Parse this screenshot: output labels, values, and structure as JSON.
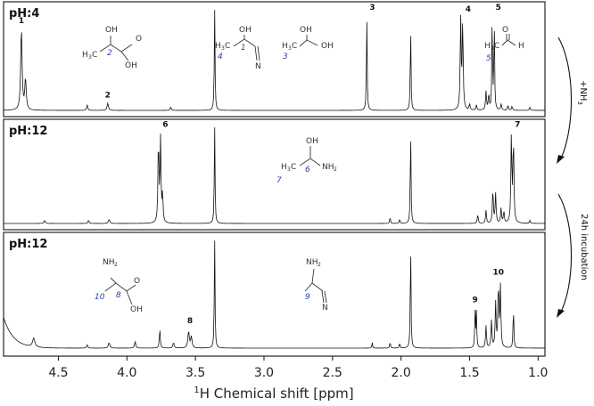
{
  "chart_data": {
    "type": "line",
    "xlabel_sup": "1",
    "xlabel": "H Chemical shift [ppm]",
    "xlim": [
      4.9,
      0.95
    ],
    "x_ticks": [
      "4.5",
      "4.0",
      "3.5",
      "3.0",
      "2.5",
      "2.0",
      "1.5",
      "1.0"
    ],
    "x_tick_values": [
      4.5,
      4.0,
      3.5,
      3.0,
      2.5,
      2.0,
      1.5,
      1.0
    ],
    "panels": [
      {
        "label": "pH:4",
        "peaks": [
          {
            "x": 4.77,
            "h": 0.8,
            "w": 0.006
          },
          {
            "x": 4.74,
            "h": 0.3,
            "w": 0.006
          },
          {
            "x": 4.29,
            "h": 0.05,
            "w": 0.005
          },
          {
            "x": 4.14,
            "h": 0.07,
            "w": 0.006
          },
          {
            "x": 3.68,
            "h": 0.03,
            "w": 0.005
          },
          {
            "x": 3.36,
            "h": 1.0,
            "w": 0.003
          },
          {
            "x": 2.25,
            "h": 0.93,
            "w": 0.003
          },
          {
            "x": 1.93,
            "h": 0.85,
            "w": 0.003
          },
          {
            "x": 1.565,
            "h": 0.88,
            "w": 0.004
          },
          {
            "x": 1.55,
            "h": 0.85,
            "w": 0.004
          },
          {
            "x": 1.5,
            "h": 0.06,
            "w": 0.004
          },
          {
            "x": 1.45,
            "h": 0.05,
            "w": 0.004
          },
          {
            "x": 1.38,
            "h": 0.18,
            "w": 0.004
          },
          {
            "x": 1.36,
            "h": 0.15,
            "w": 0.004
          },
          {
            "x": 1.335,
            "h": 0.9,
            "w": 0.003
          },
          {
            "x": 1.32,
            "h": 0.88,
            "w": 0.003
          },
          {
            "x": 1.27,
            "h": 0.06,
            "w": 0.004
          },
          {
            "x": 1.22,
            "h": 0.05,
            "w": 0.004
          },
          {
            "x": 1.19,
            "h": 0.04,
            "w": 0.004
          },
          {
            "x": 1.06,
            "h": 0.03,
            "w": 0.004
          }
        ],
        "peak_labels": [
          {
            "text": "1",
            "x": 4.77,
            "h": 0.82
          },
          {
            "text": "2",
            "x": 4.14,
            "h": 0.1
          },
          {
            "text": "3",
            "x": 2.21,
            "h": 0.95
          },
          {
            "text": "4",
            "x": 1.51,
            "h": 0.93
          },
          {
            "text": "5",
            "x": 1.29,
            "h": 0.95
          }
        ],
        "molecules": [
          {
            "type": "lactic-acid",
            "num": "2"
          },
          {
            "type": "lactonitrile",
            "num": "1",
            "num2": "4"
          },
          {
            "type": "ethanediol",
            "num": "3"
          },
          {
            "type": "acetaldehyde",
            "num": "5"
          }
        ]
      },
      {
        "label": "pH:12",
        "peaks": [
          {
            "x": 4.6,
            "h": 0.03,
            "w": 0.006
          },
          {
            "x": 4.28,
            "h": 0.03,
            "w": 0.005
          },
          {
            "x": 4.13,
            "h": 0.04,
            "w": 0.006
          },
          {
            "x": 3.77,
            "h": 0.85,
            "w": 0.004
          },
          {
            "x": 3.755,
            "h": 0.85,
            "w": 0.004
          },
          {
            "x": 3.74,
            "h": 0.28,
            "w": 0.004
          },
          {
            "x": 3.36,
            "h": 1.0,
            "w": 0.003
          },
          {
            "x": 2.08,
            "h": 0.07,
            "w": 0.003
          },
          {
            "x": 2.01,
            "h": 0.05,
            "w": 0.003
          },
          {
            "x": 1.93,
            "h": 0.98,
            "w": 0.003
          },
          {
            "x": 1.44,
            "h": 0.09,
            "w": 0.004
          },
          {
            "x": 1.38,
            "h": 0.13,
            "w": 0.004
          },
          {
            "x": 1.33,
            "h": 0.35,
            "w": 0.004
          },
          {
            "x": 1.31,
            "h": 0.3,
            "w": 0.004
          },
          {
            "x": 1.27,
            "h": 0.15,
            "w": 0.004
          },
          {
            "x": 1.25,
            "h": 0.12,
            "w": 0.004
          },
          {
            "x": 1.195,
            "h": 0.88,
            "w": 0.004
          },
          {
            "x": 1.18,
            "h": 0.86,
            "w": 0.004
          },
          {
            "x": 1.06,
            "h": 0.03,
            "w": 0.004
          }
        ],
        "peak_labels": [
          {
            "text": "6",
            "x": 3.72,
            "h": 0.95
          },
          {
            "text": "7",
            "x": 1.15,
            "h": 0.95
          }
        ],
        "molecules": [
          {
            "type": "aminopropanol",
            "num": "6",
            "num2": "7"
          }
        ]
      },
      {
        "label": "pH:12",
        "baseline_rise": true,
        "peaks": [
          {
            "x": 4.68,
            "h": 0.08,
            "w": 0.01
          },
          {
            "x": 4.29,
            "h": 0.03,
            "w": 0.005
          },
          {
            "x": 4.13,
            "h": 0.05,
            "w": 0.006
          },
          {
            "x": 3.94,
            "h": 0.06,
            "w": 0.005
          },
          {
            "x": 3.76,
            "h": 0.17,
            "w": 0.004
          },
          {
            "x": 3.66,
            "h": 0.05,
            "w": 0.005
          },
          {
            "x": 3.55,
            "h": 0.15,
            "w": 0.006
          },
          {
            "x": 3.53,
            "h": 0.1,
            "w": 0.006
          },
          {
            "x": 3.36,
            "h": 1.0,
            "w": 0.003
          },
          {
            "x": 2.21,
            "h": 0.05,
            "w": 0.003
          },
          {
            "x": 2.08,
            "h": 0.06,
            "w": 0.003
          },
          {
            "x": 2.01,
            "h": 0.05,
            "w": 0.003
          },
          {
            "x": 1.93,
            "h": 0.98,
            "w": 0.003
          },
          {
            "x": 1.46,
            "h": 0.34,
            "w": 0.003
          },
          {
            "x": 1.45,
            "h": 0.32,
            "w": 0.003
          },
          {
            "x": 1.38,
            "h": 0.2,
            "w": 0.004
          },
          {
            "x": 1.34,
            "h": 0.25,
            "w": 0.004
          },
          {
            "x": 1.31,
            "h": 0.4,
            "w": 0.004
          },
          {
            "x": 1.29,
            "h": 0.58,
            "w": 0.004
          },
          {
            "x": 1.275,
            "h": 0.55,
            "w": 0.004
          },
          {
            "x": 1.18,
            "h": 0.4,
            "w": 0.003
          }
        ],
        "peak_labels": [
          {
            "text": "8",
            "x": 3.54,
            "h": 0.2
          },
          {
            "text": "9",
            "x": 1.46,
            "h": 0.39
          },
          {
            "text": "10",
            "x": 1.29,
            "h": 0.64
          }
        ],
        "molecules": [
          {
            "type": "alanine",
            "num": "8",
            "num2": "10"
          },
          {
            "type": "aminopropionitrile",
            "num": "9"
          }
        ]
      }
    ],
    "transitions": [
      {
        "label": "+NH",
        "sub": "3"
      },
      {
        "label": "24h incubation"
      }
    ]
  }
}
